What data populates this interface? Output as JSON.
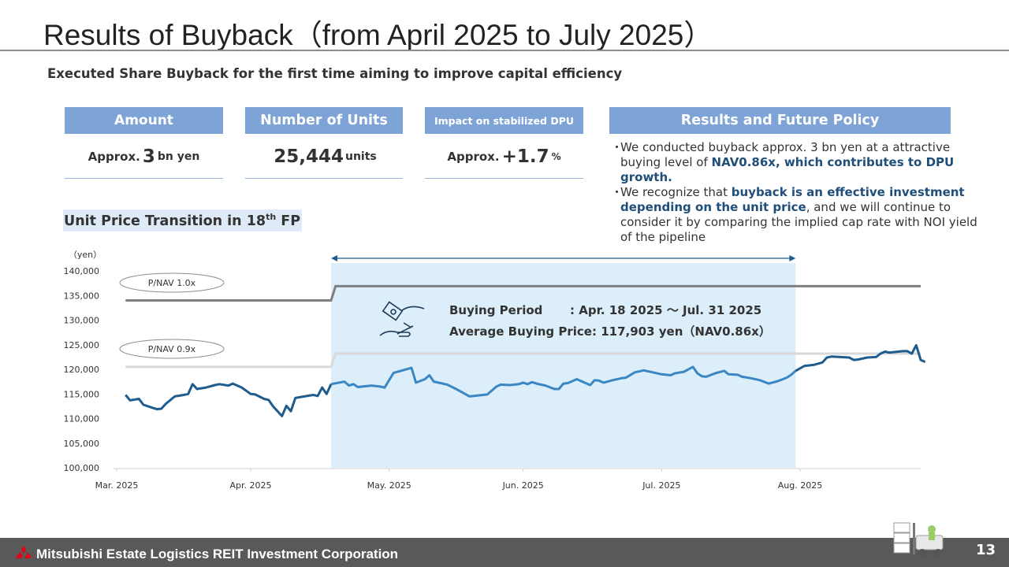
{
  "page": {
    "title": "Results of Buyback（from April 2025 to July 2025）",
    "subtitle": "Executed Share Buyback for the first time aiming to improve capital efficiency",
    "page_number": "13",
    "footer": "Mitsubishi Estate Logistics REIT Investment Corporation"
  },
  "kpis": [
    {
      "header": "Amount",
      "prefix": "Approx.",
      "value": "3",
      "unit": "bn yen"
    },
    {
      "header": "Number of Units",
      "prefix": "",
      "value": "25,444",
      "unit": "units"
    },
    {
      "header": "Impact on stabilized DPU",
      "prefix": "Approx.",
      "value": "+1.7",
      "unit": "%"
    }
  ],
  "policy": {
    "header": "Results and Future Policy",
    "bullets": [
      {
        "mark": "・",
        "parts": [
          {
            "text": "We conducted buyback approx. 3 bn yen at a attractive buying level of ",
            "bold": false
          },
          {
            "text": "NAV0.86x, which contributes to DPU growth.",
            "bold": true
          }
        ]
      },
      {
        "mark": "・",
        "parts": [
          {
            "text": "We recognize that ",
            "bold": false
          },
          {
            "text": "buyback is an effective investment depending on the unit price",
            "bold": true
          },
          {
            "text": ", and we will continue to consider it by comparing the implied cap rate with NOI yield of the pipeline",
            "bold": false
          }
        ]
      }
    ]
  },
  "chart_section": {
    "title": "Unit Price Transition in 18",
    "title_sup": "th",
    "title_tail": " FP"
  },
  "chart_data": {
    "type": "line",
    "ylabel": "（yen）",
    "ylim": [
      100000,
      140000
    ],
    "yticks": [
      100000,
      105000,
      110000,
      115000,
      120000,
      125000,
      130000,
      135000,
      140000
    ],
    "ytick_labels": [
      "100,000",
      "105,000",
      "110,000",
      "115,000",
      "120,000",
      "125,000",
      "130,000",
      "135,000",
      "140,000"
    ],
    "xlim": [
      0,
      180
    ],
    "xticks": [
      0,
      30,
      61,
      91,
      122,
      153
    ],
    "xtick_labels": [
      "Mar. 2025",
      "Apr. 2025",
      "May. 2025",
      "Jun. 2025",
      "Jul. 2025",
      "Aug. 2025"
    ],
    "buying_period": {
      "start": 48,
      "end": 152,
      "label_period": "Buying Period",
      "value_period": ": Apr. 18 2025 ～ Jul. 31 2025",
      "label_price": "Average Buying Price",
      "value_price": ": 117,903 yen（NAV0.86x）",
      "color": "#dbeef9"
    },
    "reference_lines": [
      {
        "name": "P/NAV 1.0x",
        "color": "#7f7f7f",
        "points": [
          [
            2,
            134000
          ],
          [
            48,
            134000
          ],
          [
            49,
            136900
          ],
          [
            180,
            136900
          ]
        ]
      },
      {
        "name": "P/NAV 0.9x",
        "color": "#d9d9d9",
        "points": [
          [
            2,
            120500
          ],
          [
            48,
            120500
          ],
          [
            49,
            123200
          ],
          [
            180,
            123200
          ]
        ]
      }
    ],
    "series": [
      {
        "color_dark": "#1f5c8e",
        "color_light": "#3a87c4",
        "points": [
          [
            2,
            114800
          ],
          [
            3,
            113700
          ],
          [
            5,
            114000
          ],
          [
            6,
            112800
          ],
          [
            8,
            112200
          ],
          [
            9,
            111900
          ],
          [
            10,
            112000
          ],
          [
            11,
            113000
          ],
          [
            13,
            114500
          ],
          [
            15,
            114800
          ],
          [
            16,
            115000
          ],
          [
            17,
            117000
          ],
          [
            18,
            116000
          ],
          [
            20,
            116300
          ],
          [
            22,
            116800
          ],
          [
            23,
            117000
          ],
          [
            25,
            116700
          ],
          [
            26,
            117100
          ],
          [
            28,
            116300
          ],
          [
            30,
            115000
          ],
          [
            31,
            114900
          ],
          [
            33,
            114000
          ],
          [
            34,
            113800
          ],
          [
            35,
            112500
          ],
          [
            37,
            110500
          ],
          [
            38,
            112600
          ],
          [
            39,
            111500
          ],
          [
            40,
            114200
          ],
          [
            42,
            114500
          ],
          [
            44,
            114800
          ],
          [
            45,
            114600
          ],
          [
            46,
            116300
          ],
          [
            47,
            115000
          ],
          [
            48,
            117000
          ],
          [
            51,
            117500
          ],
          [
            52,
            116700
          ],
          [
            53,
            117000
          ],
          [
            54,
            116400
          ],
          [
            56,
            116600
          ],
          [
            57,
            116700
          ],
          [
            59,
            116500
          ],
          [
            60,
            116300
          ],
          [
            62,
            119300
          ],
          [
            64,
            119800
          ],
          [
            66,
            120300
          ],
          [
            67,
            117300
          ],
          [
            69,
            118000
          ],
          [
            70,
            118800
          ],
          [
            71,
            117500
          ],
          [
            73,
            117100
          ],
          [
            74,
            116900
          ],
          [
            76,
            116000
          ],
          [
            77,
            115500
          ],
          [
            79,
            114500
          ],
          [
            81,
            114700
          ],
          [
            83,
            114900
          ],
          [
            85,
            116500
          ],
          [
            86,
            116900
          ],
          [
            88,
            116800
          ],
          [
            90,
            117000
          ],
          [
            91,
            117300
          ],
          [
            92,
            117000
          ],
          [
            93,
            117400
          ],
          [
            94,
            117100
          ],
          [
            96,
            116700
          ],
          [
            98,
            116000
          ],
          [
            99,
            116000
          ],
          [
            100,
            117100
          ],
          [
            101,
            117200
          ],
          [
            103,
            118000
          ],
          [
            104,
            117600
          ],
          [
            106,
            116800
          ],
          [
            107,
            117800
          ],
          [
            108,
            117700
          ],
          [
            109,
            117300
          ],
          [
            111,
            117800
          ],
          [
            113,
            118200
          ],
          [
            114,
            118300
          ],
          [
            116,
            119400
          ],
          [
            118,
            119800
          ],
          [
            120,
            119400
          ],
          [
            122,
            119000
          ],
          [
            124,
            118800
          ],
          [
            125,
            119200
          ],
          [
            127,
            119500
          ],
          [
            129,
            120500
          ],
          [
            130,
            119200
          ],
          [
            131,
            118600
          ],
          [
            132,
            118500
          ],
          [
            134,
            119200
          ],
          [
            136,
            119700
          ],
          [
            137,
            119000
          ],
          [
            139,
            118900
          ],
          [
            140,
            118500
          ],
          [
            142,
            118200
          ],
          [
            144,
            117800
          ],
          [
            146,
            117100
          ],
          [
            148,
            117600
          ],
          [
            150,
            118300
          ],
          [
            151,
            118900
          ],
          [
            152,
            119700
          ],
          [
            154,
            120700
          ],
          [
            156,
            120900
          ],
          [
            158,
            121400
          ],
          [
            159,
            122400
          ],
          [
            160,
            122600
          ],
          [
            162,
            122500
          ],
          [
            164,
            122400
          ],
          [
            165,
            121900
          ],
          [
            166,
            122000
          ],
          [
            168,
            122400
          ],
          [
            170,
            122500
          ],
          [
            171,
            123200
          ],
          [
            172,
            123600
          ],
          [
            173,
            123400
          ],
          [
            175,
            123600
          ],
          [
            176,
            123700
          ],
          [
            177,
            123700
          ],
          [
            178,
            123200
          ],
          [
            179,
            124900
          ],
          [
            180,
            121900
          ],
          [
            181,
            121500
          ]
        ]
      }
    ]
  },
  "colors": {
    "kpi_header": "#7ea3d6",
    "accent_text": "#1f4e79",
    "footer": "#595959"
  }
}
